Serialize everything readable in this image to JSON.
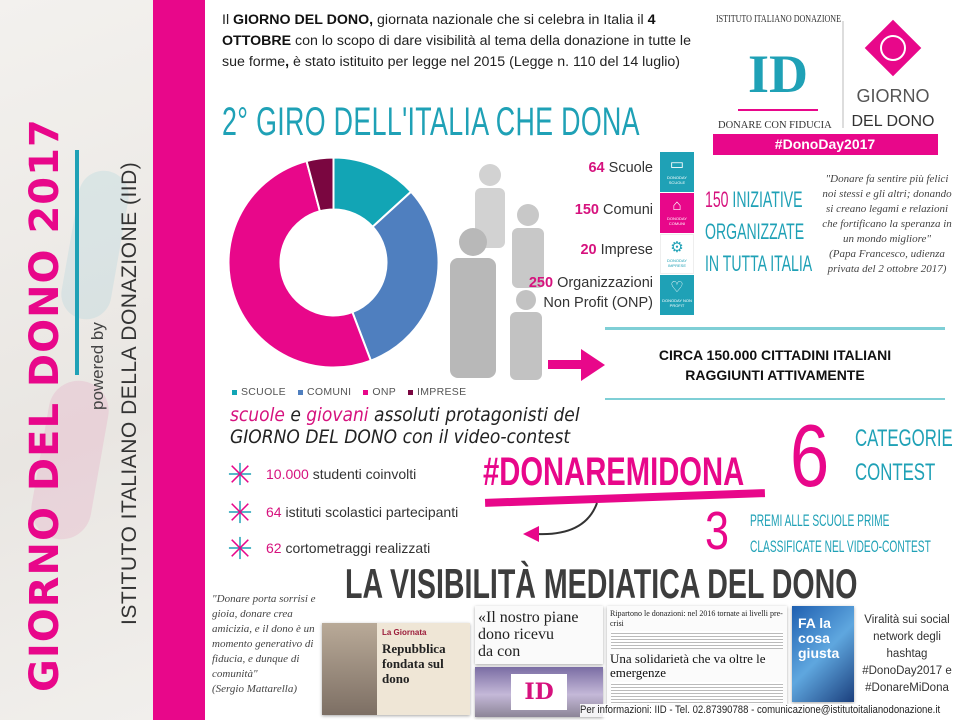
{
  "sidebar": {
    "title": "GIORNO DEL DONO 2017",
    "powered_by": "powered by",
    "institute": "ISTITUTO ITALIANO DELLA DONAZIONE (IID)"
  },
  "intro": {
    "p1": "Il ",
    "b1": "GIORNO DEL DONO,",
    "p2": " giornata nazionale che si celebra in Italia il ",
    "b2": "4 OTTOBRE",
    "p3": " con lo scopo di dare visibilità al tema della donazione in tutte le sue forme",
    "b3": ",",
    "p4": " è stato istituito per legge nel 2015 (Legge n. 110 del 14 luglio)"
  },
  "giro_title": "2° GIRO DELL'ITALIA CHE DONA",
  "logo": {
    "iid_arc": "ISTITUTO ITALIANO DONAZIONE",
    "iid_letters": "ID",
    "iid_tagline": "DONARE CON FIDUCIA",
    "gdd_line1": "GIORNO",
    "gdd_line2": "DEL DONO",
    "hashtag": "#DonoDay2017"
  },
  "chart_data": {
    "type": "pie",
    "donut": true,
    "categories": [
      "SCUOLE",
      "COMUNI",
      "ONP",
      "IMPRESE"
    ],
    "values": [
      64,
      150,
      250,
      20
    ],
    "colors": [
      "#12a5b5",
      "#4f7fbf",
      "#e8078a",
      "#7a0640"
    ],
    "legend": "bottom"
  },
  "stats": [
    {
      "num": "64",
      "label": "Scuole",
      "tile": "DONODAY SCUOLE",
      "icon": "book-icon",
      "color": "#1fa1b6"
    },
    {
      "num": "150",
      "label": "Comuni",
      "tile": "DONODAY COMUNI",
      "icon": "town-hall-icon",
      "color": "#e8078a"
    },
    {
      "num": "20",
      "label": "Imprese",
      "tile": "DONODAY IMPRESE",
      "icon": "gears-icon",
      "color": "#ffffff"
    },
    {
      "num": "250",
      "label": "Organizzazioni",
      "label2": "Non Profit (ONP)",
      "tile": "DONODAY NON PROFIT",
      "icon": "heart-icon",
      "color": "#1fa1b6"
    }
  ],
  "iniziative": {
    "num": "150",
    "l1": "INIZIATIVE",
    "l2": "ORGANIZZATE",
    "l3": "IN TUTTA ITALIA"
  },
  "papa_quote": {
    "text": "\"Donare fa sentire più felici noi stessi e gli altri; donando si creano legami e relazioni che fortificano la speranza in un mondo migliore\"",
    "source": "(Papa Francesco, udienza privata del 2 ottobre 2017)"
  },
  "cittadini": {
    "l1": "CIRCA 150.000 CITTADINI ITALIANI",
    "l2": "RAGGIUNTI ATTIVAMENTE"
  },
  "protagonisti": {
    "w1": "scuole",
    "w2": " e ",
    "w3": "giovani",
    "w4": " assoluti protagonisti del",
    "l2": "GIORNO DEL DONO con il video-contest"
  },
  "bullets": [
    {
      "num": "10.000",
      "text": " studenti coinvolti"
    },
    {
      "num": "64",
      "text": " istituti scolastici partecipanti"
    },
    {
      "num": "62",
      "text": " cortometraggi realizzati"
    }
  ],
  "contest": {
    "hashtag": "#DONAREMIDONA",
    "six": "6",
    "cat_l1": "CATEGORIE",
    "cat_l2": "CONTEST",
    "three": "3",
    "premi_l1": "PREMI ALLE SCUOLE PRIME",
    "premi_l2": "CLASSIFICATE NEL VIDEO-CONTEST"
  },
  "media": {
    "title": "LA VISIBILITÀ MEDIATICA DEL DONO",
    "mattarella_quote": "\"Donare porta sorrisi e gioia, donare crea amicizia, e il dono è un momento generativo di fiducia, e dunque di comunità\"",
    "mattarella_source": "(Sergio Mattarella)",
    "clip1_head": "La Giornata",
    "clip1_title": "Repubblica fondata sul dono",
    "clip2_l1": "«Il nostro piane",
    "clip2_l2": "dono ricevu",
    "clip2_l3": "da con",
    "clip3_screen": "ID",
    "clip4_head": "Ripartono le donazioni: nel 2016 tornate ai livelli pre-crisi",
    "clip4_title": "Una solidarietà che va oltre le emergenze",
    "clip5_text": "FA la cosa giusta",
    "viral": "Viralità sui social network degli hashtag #DonoDay2017 e #DonareMiDona"
  },
  "footer": "Per informazioni: IID - Tel. 02.87390788 - comunicazione@istitutoitalianodonazione.it"
}
